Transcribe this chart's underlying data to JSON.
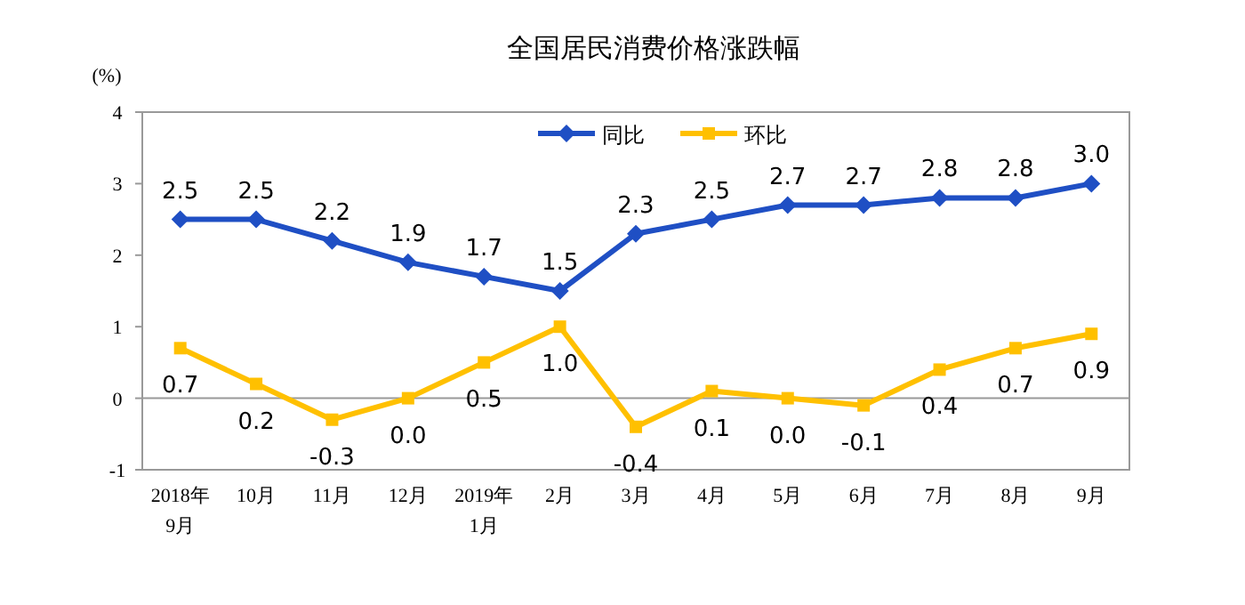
{
  "chart_data": {
    "type": "line",
    "title": "全国居民消费价格涨跌幅",
    "ylabel": "(%)",
    "categories": [
      "2018年\n9月",
      "10月",
      "11月",
      "12月",
      "2019年\n1月",
      "2月",
      "3月",
      "4月",
      "5月",
      "6月",
      "7月",
      "8月",
      "9月"
    ],
    "series": [
      {
        "name": "同比",
        "color": "#1f4fc4",
        "marker": "diamond",
        "values": [
          2.5,
          2.5,
          2.2,
          1.9,
          1.7,
          1.5,
          2.3,
          2.5,
          2.7,
          2.7,
          2.8,
          2.8,
          3.0
        ],
        "value_labels": [
          "2.5",
          "2.5",
          "2.2",
          "1.9",
          "1.7",
          "1.5",
          "2.3",
          "2.5",
          "2.7",
          "2.7",
          "2.8",
          "2.8",
          "3.0"
        ]
      },
      {
        "name": "环比",
        "color": "#ffc000",
        "marker": "square",
        "values": [
          0.7,
          0.2,
          -0.3,
          0.0,
          0.5,
          1.0,
          -0.4,
          0.1,
          0.0,
          -0.1,
          0.4,
          0.7,
          0.9
        ],
        "value_labels": [
          "0.7",
          "0.2",
          "-0.3",
          "0.0",
          "0.5",
          "1.0",
          "-0.4",
          "0.1",
          "0.0",
          "-0.1",
          "0.4",
          "0.7",
          "0.9"
        ]
      }
    ],
    "ylim": [
      -1,
      4
    ],
    "yticks": [
      -1,
      0,
      1,
      2,
      3,
      4
    ],
    "legend": "top"
  }
}
